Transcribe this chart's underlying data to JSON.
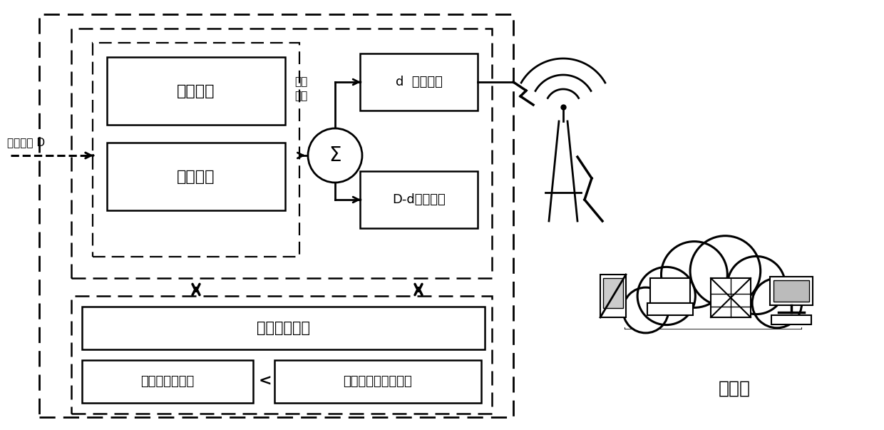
{
  "bg_color": "#ffffff",
  "fig_w": 12.4,
  "fig_h": 6.03,
  "font_name": "SimHei",
  "labels": {
    "energy": "能量管理",
    "migration_arb": "迁移仒裁",
    "migrate_transfer": "d  迁移传输",
    "local_compute": "D-d本地计算",
    "time_constraint": "计算时间约束",
    "migrate_time": "迁移计算总时间",
    "local_time": "全部本地计算总时间",
    "input": "输入数据 D",
    "edge_cloud": "边缘云",
    "migrate_calc_1": "迁移",
    "migrate_calc_2": "计算",
    "d_label": "d"
  }
}
